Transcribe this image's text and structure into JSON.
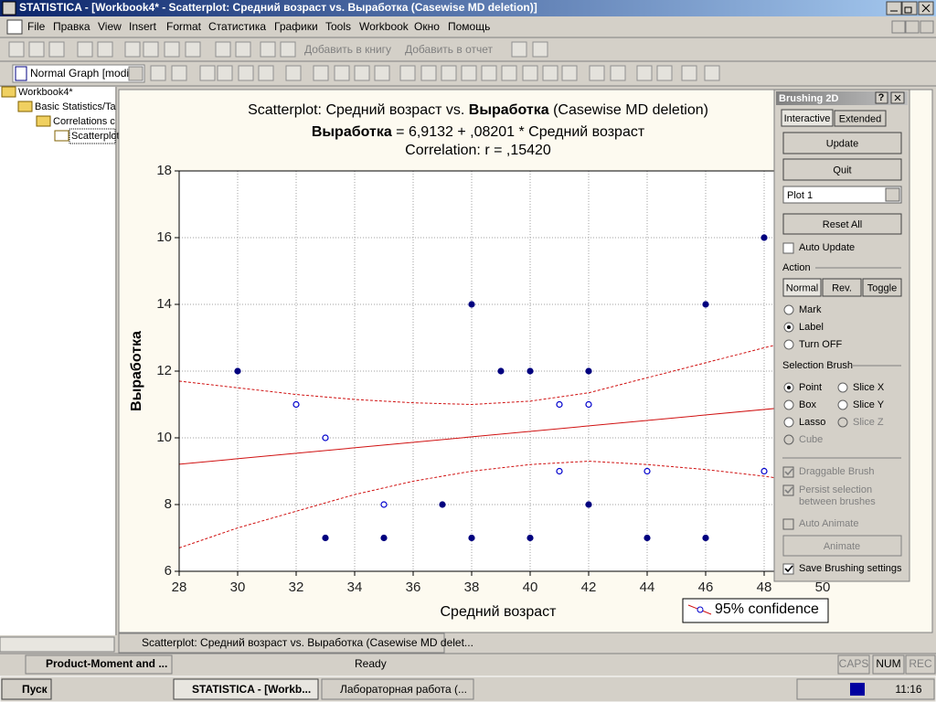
{
  "window": {
    "title": "STATISTICA - [Workbook4* - Scatterplot: Средний возраст vs. Выработка (Casewise MD deletion)]",
    "menu": [
      "File",
      "Правка",
      "View",
      "Insert",
      "Format",
      "Статистика",
      "Графики",
      "Tools",
      "Workbook",
      "Окно",
      "Помощь"
    ],
    "toolbar": [
      "Добавить в книгу",
      "Добавить в отчет"
    ],
    "graph_combo": "Normal Graph [modi..."
  },
  "tree": [
    "Workbook4*",
    "Basic Statistics/Ta",
    "Correlations c",
    "Scatterplot"
  ],
  "chart_data": {
    "type": "scatter",
    "title": [
      "Scatterplot: Средний возраст vs. ",
      "Выработка",
      " (Casewise MD deletion)"
    ],
    "subtitle": [
      "Выработка",
      " = 6,9132 + ,08201 * Средний возраст"
    ],
    "correlation": "Correlation: r = ,15420",
    "x_label": "Средний возраст",
    "y_label": "Выработка",
    "x": [
      30,
      32,
      33,
      33,
      35,
      35,
      37,
      38,
      38,
      39,
      40,
      40,
      41,
      41,
      42,
      42,
      42,
      44,
      44,
      46,
      46,
      48,
      48
    ],
    "values": [
      12,
      11,
      10,
      7,
      8,
      7,
      8,
      14,
      7,
      12,
      12,
      7,
      11,
      9,
      12,
      11,
      8,
      9,
      7,
      14,
      7,
      16,
      9
    ],
    "filled": [
      true,
      false,
      false,
      true,
      false,
      true,
      true,
      true,
      true,
      true,
      true,
      true,
      false,
      false,
      true,
      false,
      true,
      false,
      true,
      true,
      true,
      true,
      false
    ],
    "color": "#00007f",
    "fit": {
      "intercept": 6.9132,
      "slope": 0.08201,
      "color": "#d01010"
    },
    "confidence": {
      "x": [
        28,
        30,
        32,
        34,
        36,
        38,
        40,
        42,
        44,
        46,
        48,
        50
      ],
      "lower": [
        6.7,
        7.3,
        7.8,
        8.3,
        8.7,
        9.0,
        9.2,
        9.3,
        9.2,
        9.05,
        8.85,
        8.6
      ],
      "upper": [
        11.7,
        11.5,
        11.3,
        11.15,
        11.05,
        11.0,
        11.1,
        11.35,
        11.8,
        12.25,
        12.7,
        13.1
      ]
    },
    "legend": "95% confidence",
    "xlim": [
      28,
      50
    ],
    "ylim": [
      6,
      18
    ],
    "xticks": [
      28,
      30,
      32,
      34,
      36,
      38,
      40,
      42,
      44,
      46,
      48,
      50
    ],
    "yticks": [
      6,
      8,
      10,
      12,
      14,
      16,
      18
    ],
    "grid": true
  },
  "brushing": {
    "title": "Brushing 2D",
    "tabs": [
      "Interactive",
      "Extended"
    ],
    "update": "Update",
    "quit": "Quit",
    "plot_select": "Plot 1",
    "reset": "Reset All",
    "auto_update": "Auto Update",
    "action": "Action",
    "modes": [
      "Normal",
      "Rev.",
      "Toggle"
    ],
    "actions": [
      "Mark",
      "Label",
      "Turn OFF"
    ],
    "selection_brush": "Selection Brush",
    "brushes": [
      "Point",
      "Slice X",
      "Box",
      "Slice Y",
      "Lasso",
      "Slice Z",
      "Cube"
    ],
    "draggable": "Draggable Brush",
    "persist": [
      "Persist selection",
      "between brushes"
    ],
    "auto_animate": "Auto Animate",
    "animate": "Animate",
    "save": "Save Brushing settings"
  },
  "document_tab": "Scatterplot: Средний возраст vs. Выработка (Casewise MD delet...",
  "status": {
    "task": "Product-Moment and ...",
    "message": "Ready",
    "keys": [
      "CAPS",
      "NUM",
      "REC"
    ]
  },
  "taskbar": {
    "start": "Пуск",
    "tasks": [
      "STATISTICA - [Workb...",
      "Лабораторная работа (..."
    ],
    "clock": "11:16"
  }
}
